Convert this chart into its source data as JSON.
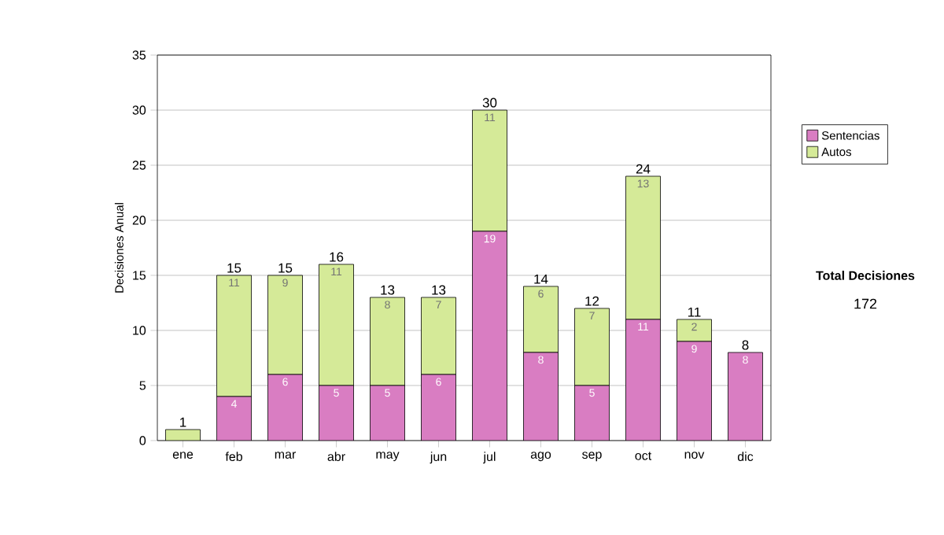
{
  "chart_data": {
    "type": "bar",
    "stacked": true,
    "ylabel": "Decisiones Anual",
    "categories": [
      "ene",
      "feb",
      "mar",
      "abr",
      "may",
      "jun",
      "jul",
      "ago",
      "sep",
      "oct",
      "nov",
      "dic"
    ],
    "series": [
      {
        "name": "Sentencias",
        "color": "#d97dc2",
        "values": [
          0,
          4,
          6,
          5,
          5,
          6,
          19,
          8,
          5,
          11,
          9,
          8
        ],
        "value_labels": [
          null,
          "4",
          "6",
          "5",
          "5",
          "6",
          "19",
          "8",
          "5",
          "11",
          "9",
          "8"
        ]
      },
      {
        "name": "Autos",
        "color": "#d5ea98",
        "values": [
          1,
          11,
          9,
          11,
          8,
          7,
          11,
          6,
          7,
          13,
          2,
          0
        ],
        "value_labels": [
          null,
          "11",
          "9",
          "11",
          "8",
          "7",
          "11",
          "6",
          "7",
          "13",
          "2",
          null
        ]
      }
    ],
    "totals": [
      "1",
      "15",
      "15",
      "16",
      "13",
      "13",
      "30",
      "14",
      "12",
      "24",
      "11",
      "8"
    ],
    "ylim": [
      0,
      35
    ],
    "yticks": [
      0,
      5,
      10,
      15,
      20,
      25,
      30,
      35
    ],
    "grid": "y",
    "legend": "right",
    "annotations": [
      "Total Decisiones",
      "172"
    ]
  }
}
